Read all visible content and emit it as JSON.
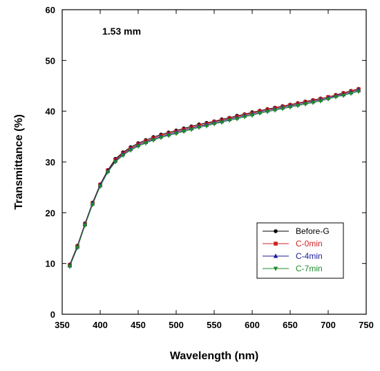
{
  "chart_data": {
    "type": "line",
    "annotation": "1.53 mm",
    "xlabel": "Wavelength (nm)",
    "ylabel": "Transmittance (%)",
    "xlim": [
      350,
      750
    ],
    "ylim": [
      0,
      60
    ],
    "xticks": [
      "350",
      "400",
      "450",
      "500",
      "550",
      "600",
      "650",
      "700",
      "750"
    ],
    "yticks": [
      "0",
      "10",
      "20",
      "30",
      "40",
      "50",
      "60"
    ],
    "legend_position": "bottom-right",
    "x": [
      360,
      370,
      380,
      390,
      400,
      410,
      420,
      430,
      440,
      450,
      460,
      470,
      480,
      490,
      500,
      510,
      520,
      530,
      540,
      550,
      560,
      570,
      580,
      590,
      600,
      610,
      620,
      630,
      640,
      650,
      660,
      670,
      680,
      690,
      700,
      710,
      720,
      730,
      740
    ],
    "series": [
      {
        "name": "Before-G",
        "color": "#000000",
        "marker": "circle",
        "values": [
          9.8,
          13.5,
          17.9,
          22.0,
          25.6,
          28.4,
          30.6,
          31.9,
          32.9,
          33.7,
          34.3,
          34.9,
          35.4,
          35.8,
          36.2,
          36.6,
          37.0,
          37.4,
          37.7,
          38.0,
          38.4,
          38.7,
          39.1,
          39.4,
          39.8,
          40.1,
          40.4,
          40.7,
          41.0,
          41.3,
          41.6,
          41.9,
          42.2,
          42.5,
          42.8,
          43.2,
          43.6,
          44.0,
          44.4
        ]
      },
      {
        "name": "C-0min",
        "color": "#cc2222",
        "marker": "square",
        "values": [
          9.7,
          13.4,
          17.8,
          21.9,
          25.5,
          28.3,
          30.4,
          31.7,
          32.7,
          33.5,
          34.1,
          34.7,
          35.2,
          35.6,
          36.0,
          36.4,
          36.8,
          37.2,
          37.5,
          37.9,
          38.2,
          38.6,
          38.9,
          39.3,
          39.6,
          40.0,
          40.3,
          40.6,
          40.9,
          41.2,
          41.5,
          41.8,
          42.1,
          42.4,
          42.8,
          43.1,
          43.5,
          43.9,
          44.3
        ]
      },
      {
        "name": "C-4min",
        "color": "#1a1a9a",
        "marker": "triangle-up",
        "values": [
          9.6,
          13.3,
          17.7,
          21.8,
          25.4,
          28.2,
          30.2,
          31.5,
          32.5,
          33.3,
          33.9,
          34.5,
          35.0,
          35.4,
          35.8,
          36.2,
          36.6,
          37.0,
          37.3,
          37.7,
          38.0,
          38.4,
          38.7,
          39.1,
          39.4,
          39.8,
          40.1,
          40.4,
          40.7,
          41.0,
          41.3,
          41.6,
          41.9,
          42.2,
          42.6,
          43.0,
          43.3,
          43.7,
          44.1
        ]
      },
      {
        "name": "C-7min",
        "color": "#1f8a2a",
        "marker": "triangle-down",
        "values": [
          9.4,
          13.1,
          17.5,
          21.6,
          25.2,
          28.0,
          30.0,
          31.3,
          32.3,
          33.1,
          33.7,
          34.3,
          34.8,
          35.2,
          35.6,
          36.0,
          36.4,
          36.8,
          37.1,
          37.5,
          37.8,
          38.2,
          38.5,
          38.9,
          39.2,
          39.6,
          39.9,
          40.2,
          40.5,
          40.8,
          41.1,
          41.4,
          41.7,
          42.0,
          42.4,
          42.8,
          43.1,
          43.5,
          43.9
        ]
      }
    ]
  }
}
